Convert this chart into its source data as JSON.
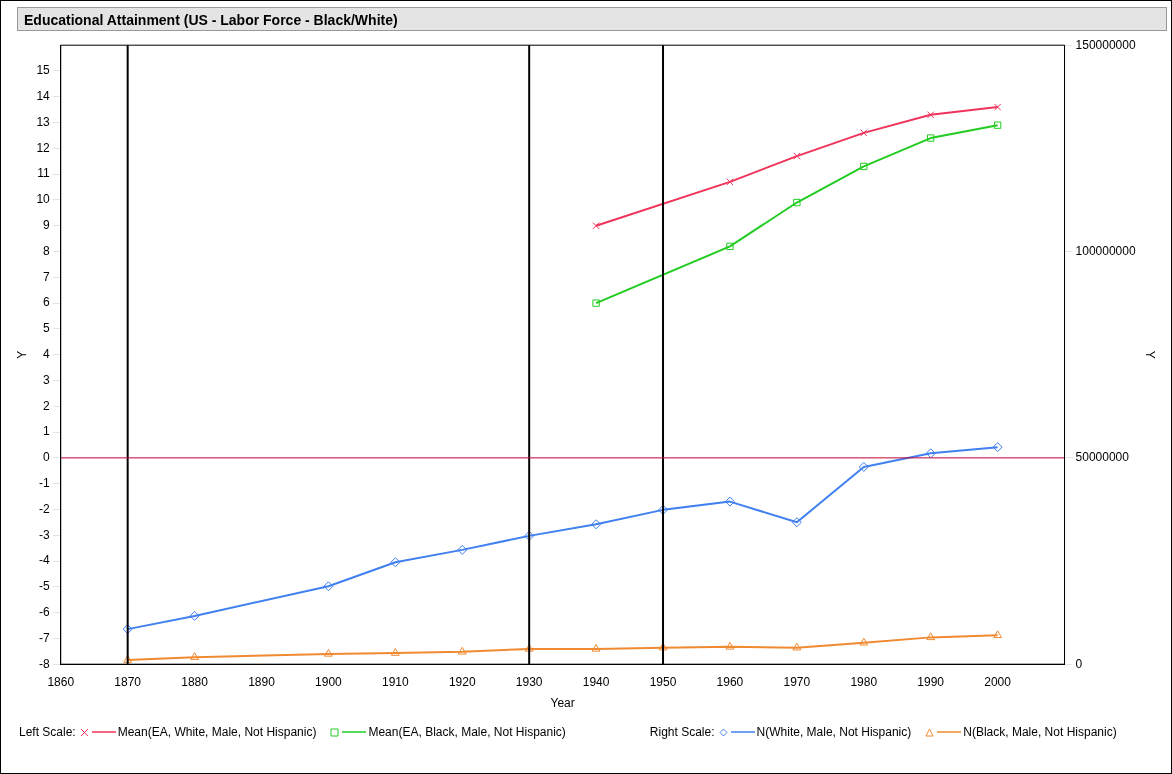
{
  "chart_data": {
    "type": "line",
    "title": "Educational Attainment (US - Labor Force - Black/White)",
    "xlabel": "Year",
    "ylabel": "Y",
    "y2label": "Y",
    "xlim": [
      1860,
      2010
    ],
    "xticks": [
      1860,
      1870,
      1880,
      1890,
      1900,
      1910,
      1920,
      1930,
      1940,
      1950,
      1960,
      1970,
      1980,
      1990,
      2000
    ],
    "ylim": [
      -8,
      16
    ],
    "yticks": [
      -8,
      -7,
      -6,
      -5,
      -4,
      -3,
      -2,
      -1,
      0,
      1,
      2,
      3,
      4,
      5,
      6,
      7,
      8,
      9,
      10,
      11,
      12,
      13,
      14,
      15
    ],
    "y2lim": [
      0,
      150000000
    ],
    "y2ticks": [
      0,
      50000000,
      100000000,
      150000000
    ],
    "legend": "bottom",
    "annotations": [
      "Left Scale:",
      "Right Scale:"
    ],
    "series": [
      {
        "name": "Mean(EA, White, Male, Not Hispanic)",
        "color": "#f0335a",
        "marker": "cross",
        "x": [
          1940,
          1960,
          1970,
          1980,
          1990,
          2000
        ],
        "values": [
          9.0,
          10.7,
          11.7,
          12.6,
          13.3,
          13.6
        ]
      },
      {
        "name": "Mean(EA, Black, Male, Not Hispanic)",
        "color": "#22cc22",
        "marker": "square",
        "x": [
          1940,
          1960,
          1970,
          1980,
          1990,
          2000
        ],
        "values": [
          6.0,
          8.2,
          9.9,
          11.3,
          12.4,
          12.9
        ]
      },
      {
        "name": "N(White, Male, Not Hispanic)",
        "color": "#4080f0",
        "marker": "diamond",
        "axis": "y2",
        "x": [
          1870,
          1880,
          1900,
          1910,
          1920,
          1930,
          1940,
          1950,
          1960,
          1970,
          1980,
          1990,
          2000
        ],
        "values": [
          8500000,
          11700000,
          18900000,
          24700000,
          27700000,
          31100000,
          33900000,
          37400000,
          39400000,
          34400000,
          47800000,
          51100000,
          52600000
        ]
      },
      {
        "name": "N(Black, Male, Not Hispanic)",
        "color": "#f08a30",
        "marker": "triangle",
        "axis": "y2",
        "x": [
          1870,
          1880,
          1900,
          1910,
          1920,
          1930,
          1940,
          1950,
          1960,
          1970,
          1980,
          1990,
          2000
        ],
        "values": [
          1000000,
          1700000,
          2500000,
          2700000,
          3000000,
          3700000,
          3700000,
          4000000,
          4200000,
          4000000,
          5200000,
          6500000,
          7000000
        ]
      }
    ],
    "ref_lines": [
      {
        "axis": "x",
        "value": 1870,
        "color": "#000000"
      },
      {
        "axis": "x",
        "value": 1930,
        "color": "#000000"
      },
      {
        "axis": "x",
        "value": 1950,
        "color": "#000000"
      },
      {
        "axis": "y",
        "value": 0,
        "color": "#c0003c"
      }
    ]
  }
}
